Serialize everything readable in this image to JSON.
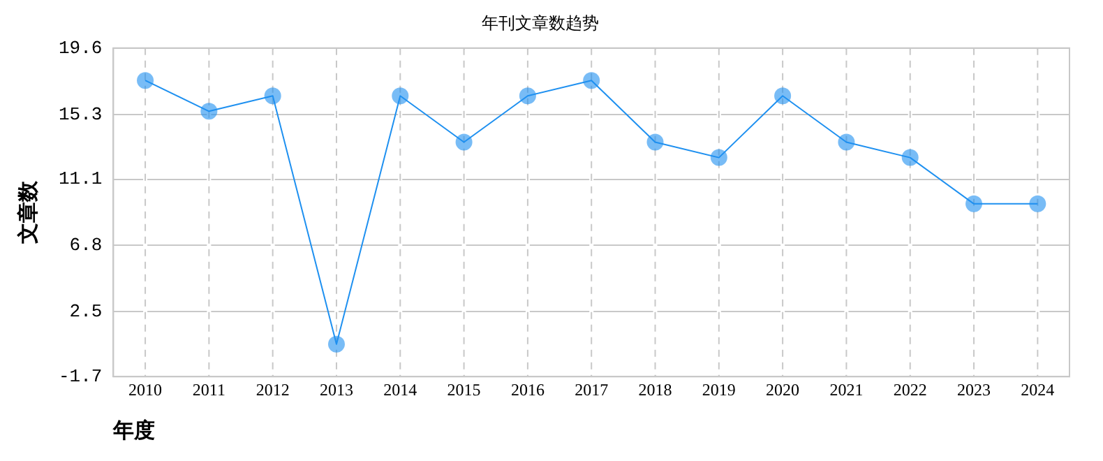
{
  "chart_data": {
    "type": "line",
    "title": "年刊文章数趋势",
    "xlabel": "年度",
    "ylabel": "文章数",
    "categories": [
      "2010",
      "2011",
      "2012",
      "2013",
      "2014",
      "2015",
      "2016",
      "2017",
      "2018",
      "2019",
      "2020",
      "2021",
      "2022",
      "2023",
      "2024"
    ],
    "series": [
      {
        "color": "#1e90f0",
        "values": [
          17.5,
          15.5,
          16.5,
          0.4,
          16.5,
          13.5,
          16.5,
          17.5,
          13.5,
          12.5,
          16.5,
          13.5,
          12.5,
          9.5,
          9.5
        ]
      }
    ],
    "ylim": [
      -1.7,
      19.6
    ],
    "yticks": [
      -1.7,
      2.5,
      6.8,
      11.1,
      15.3,
      19.6
    ],
    "grid": true,
    "legend": false,
    "marker": "circle",
    "line_style": "solid"
  }
}
